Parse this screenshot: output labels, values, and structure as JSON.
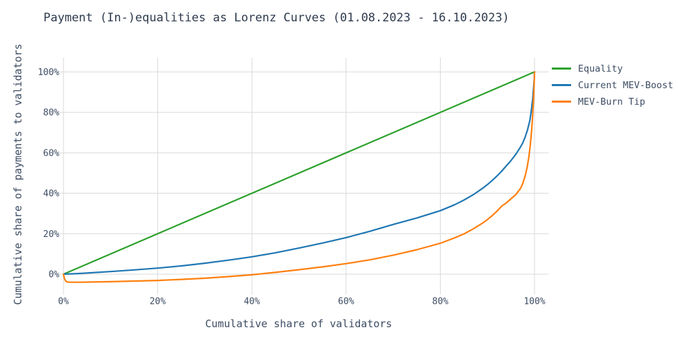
{
  "chart": {
    "title": "Payment (In-)equalities as Lorenz Curves (01.08.2023 - 16.10.2023)",
    "xlabel": "Cumulative share of validators",
    "ylabel": "Cumulative share of payments to validators",
    "colors": {
      "background": "#ffffff",
      "grid": "#d9d9d9",
      "tick_text": "#3d4c63",
      "title_text": "#2e3b4e"
    }
  },
  "chart_data": {
    "type": "line",
    "title": "Payment (In-)equalities as Lorenz Curves (01.08.2023 - 16.10.2023)",
    "xlabel": "Cumulative share of validators",
    "ylabel": "Cumulative share of payments to validators",
    "x_tick_labels": [
      "0%",
      "20%",
      "40%",
      "60%",
      "80%",
      "100%"
    ],
    "y_tick_labels": [
      "0%",
      "20%",
      "40%",
      "60%",
      "80%",
      "100%"
    ],
    "x_tick_values": [
      0,
      20,
      40,
      60,
      80,
      100
    ],
    "y_tick_values": [
      0,
      20,
      40,
      60,
      80,
      100
    ],
    "xlim": [
      -1.5,
      103
    ],
    "ylim": [
      -8,
      107
    ],
    "grid": true,
    "legend_position": "right",
    "series": [
      {
        "name": "Equality",
        "color": "#2ca02c",
        "points": [
          [
            0,
            0
          ],
          [
            100,
            100
          ]
        ]
      },
      {
        "name": "Current MEV-Boost",
        "color": "#1f77b4",
        "points": [
          [
            0,
            0
          ],
          [
            3,
            0.3
          ],
          [
            6,
            0.7
          ],
          [
            10,
            1.3
          ],
          [
            15,
            2.1
          ],
          [
            20,
            3.0
          ],
          [
            25,
            4.1
          ],
          [
            30,
            5.4
          ],
          [
            35,
            6.9
          ],
          [
            40,
            8.6
          ],
          [
            45,
            10.6
          ],
          [
            50,
            12.9
          ],
          [
            55,
            15.4
          ],
          [
            60,
            18.1
          ],
          [
            65,
            21.2
          ],
          [
            70,
            24.6
          ],
          [
            75,
            27.8
          ],
          [
            80,
            31.4
          ],
          [
            83,
            34.3
          ],
          [
            85,
            36.6
          ],
          [
            87,
            39.3
          ],
          [
            89,
            42.5
          ],
          [
            90,
            44.3
          ],
          [
            91,
            46.3
          ],
          [
            92,
            48.5
          ],
          [
            93,
            50.9
          ],
          [
            94,
            53.5
          ],
          [
            95,
            56.2
          ],
          [
            96,
            59.2
          ],
          [
            97,
            62.8
          ],
          [
            97.5,
            64.9
          ],
          [
            98,
            67.7
          ],
          [
            98.5,
            71.3
          ],
          [
            99,
            76.0
          ],
          [
            99.3,
            80.5
          ],
          [
            99.6,
            86.5
          ],
          [
            99.8,
            92.0
          ],
          [
            99.95,
            97.0
          ],
          [
            100,
            100
          ]
        ]
      },
      {
        "name": "MEV-Burn Tip",
        "color": "#ff7f0e",
        "points": [
          [
            0,
            0
          ],
          [
            0.2,
            -2.2
          ],
          [
            0.5,
            -3.4
          ],
          [
            0.8,
            -3.8
          ],
          [
            1.2,
            -4.0
          ],
          [
            3,
            -4.0
          ],
          [
            5,
            -3.9
          ],
          [
            10,
            -3.7
          ],
          [
            15,
            -3.4
          ],
          [
            20,
            -3.1
          ],
          [
            25,
            -2.6
          ],
          [
            30,
            -2.0
          ],
          [
            35,
            -1.2
          ],
          [
            40,
            -0.3
          ],
          [
            45,
            0.9
          ],
          [
            50,
            2.2
          ],
          [
            55,
            3.6
          ],
          [
            60,
            5.2
          ],
          [
            65,
            7.1
          ],
          [
            70,
            9.4
          ],
          [
            75,
            12.1
          ],
          [
            80,
            15.3
          ],
          [
            83,
            17.9
          ],
          [
            85,
            19.9
          ],
          [
            87,
            22.4
          ],
          [
            89,
            25.3
          ],
          [
            90,
            27.0
          ],
          [
            91,
            28.9
          ],
          [
            92,
            31.1
          ],
          [
            93,
            33.6
          ],
          [
            94,
            35.2
          ],
          [
            95,
            37.3
          ],
          [
            96,
            39.3
          ],
          [
            97,
            42.3
          ],
          [
            97.5,
            44.8
          ],
          [
            98,
            48.5
          ],
          [
            98.4,
            52.5
          ],
          [
            98.8,
            58.0
          ],
          [
            99.1,
            64.0
          ],
          [
            99.4,
            71.5
          ],
          [
            99.6,
            78.5
          ],
          [
            99.8,
            87.0
          ],
          [
            99.9,
            92.5
          ],
          [
            100,
            100
          ]
        ]
      }
    ]
  }
}
